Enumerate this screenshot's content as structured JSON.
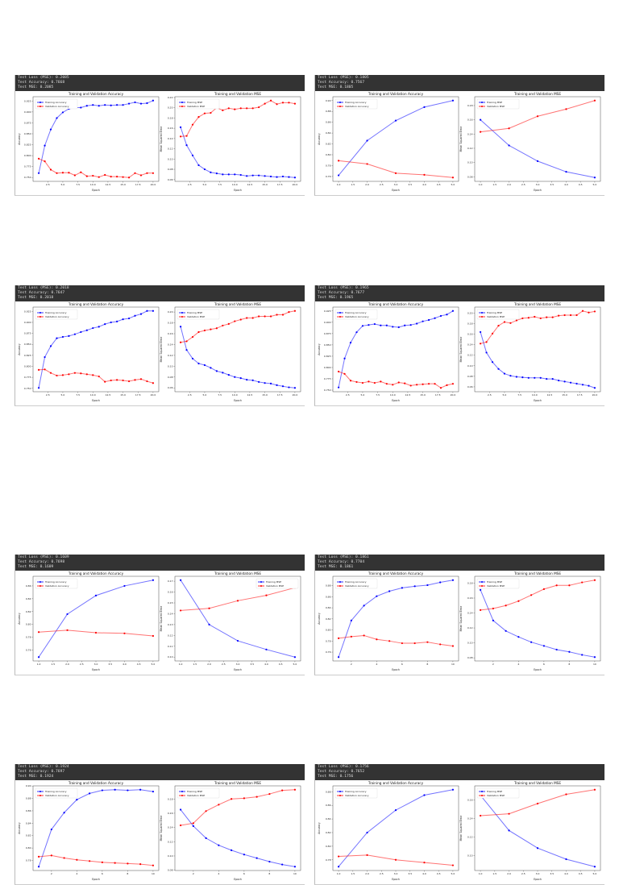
{
  "panels": [
    {
      "header": [
        "Test Loss (MSE): 0.2085",
        "Test Accuracy: 0.7668",
        "Test MSE: 0.2085"
      ]
    },
    {
      "header": [
        "Test Loss (MSE): 0.1805",
        "Test Accuracy: 0.7567",
        "Test MSE: 0.1805"
      ]
    },
    {
      "header": [
        "Test Loss (MSE): 0.2018",
        "Test Accuracy: 0.7647",
        "Test MSE: 0.2018"
      ]
    },
    {
      "header": [
        "Test Loss (MSE): 0.1965",
        "Test Accuracy: 0.7677",
        "Test MSE: 0.1965"
      ]
    },
    {
      "header": [
        "Test Loss (MSE): 0.1609",
        "Test Accuracy: 0.7698",
        "Test MSE: 0.1609"
      ]
    },
    {
      "header": [
        "Test Loss (MSE): 0.1861",
        "Test Accuracy: 0.7704",
        "Test MSE: 0.1861"
      ]
    },
    {
      "header": [
        "Test Loss (MSE): 0.1924",
        "Test Accuracy: 0.7697",
        "Test MSE: 0.1924"
      ]
    },
    {
      "header": [
        "Test Loss (MSE): 0.1756",
        "Test Accuracy: 0.7652",
        "Test MSE: 0.1756"
      ]
    }
  ],
  "colors": {
    "training": "#0000ff",
    "validation": "#ff0000",
    "header_bg": "#333333"
  },
  "chart_data": [
    {
      "type": "line",
      "title": "Training and Validation Accuracy",
      "xlabel": "Epoch",
      "ylabel": "Accuracy",
      "legend": "upper-left",
      "xticks": [
        "2.5",
        "5.0",
        "7.5",
        "10.0",
        "12.5",
        "15.0",
        "17.5",
        "20.0"
      ],
      "yticks": [
        "0.750",
        "0.775",
        "0.800",
        "0.825",
        "0.850",
        "0.875",
        "0.900",
        "0.925"
      ],
      "series": [
        {
          "name": "Training Accuracy",
          "values": [
            0.76,
            0.823,
            0.86,
            0.886,
            0.899,
            0.907,
            0.91,
            0.91,
            0.914,
            0.916,
            0.914,
            0.916,
            0.915,
            0.916,
            0.916,
            0.919,
            0.922,
            0.919,
            0.92,
            0.926
          ]
        },
        {
          "name": "Validation Accuracy",
          "values": [
            0.793,
            0.787,
            0.768,
            0.76,
            0.761,
            0.761,
            0.755,
            0.762,
            0.753,
            0.754,
            0.751,
            0.756,
            0.752,
            0.752,
            0.751,
            0.75,
            0.76,
            0.755,
            0.76,
            0.76
          ]
        }
      ]
    },
    {
      "type": "line",
      "title": "Training and Validation MSE",
      "xlabel": "Epoch",
      "ylabel": "Mean Squared Error",
      "legend": "upper-left",
      "xticks": [
        "2.5",
        "5.0",
        "7.5",
        "10.0",
        "12.5",
        "15.0",
        "17.5",
        "20.0"
      ],
      "yticks": [
        "0.06",
        "0.08",
        "0.10",
        "0.12",
        "0.14",
        "0.16",
        "0.18",
        "0.20",
        "0.22"
      ],
      "series": [
        {
          "name": "Training MSE",
          "values": [
            0.162,
            0.127,
            0.107,
            0.088,
            0.08,
            0.074,
            0.072,
            0.07,
            0.07,
            0.07,
            0.069,
            0.067,
            0.068,
            0.068,
            0.067,
            0.066,
            0.065,
            0.066,
            0.065,
            0.064
          ]
        },
        {
          "name": "Validation MSE",
          "values": [
            0.144,
            0.145,
            0.167,
            0.182,
            0.189,
            0.19,
            0.2,
            0.195,
            0.199,
            0.197,
            0.199,
            0.199,
            0.199,
            0.201,
            0.208,
            0.214,
            0.207,
            0.21,
            0.21,
            0.208
          ]
        }
      ]
    },
    {
      "type": "line",
      "title": "Training and Validation Accuracy",
      "xlabel": "Epoch",
      "ylabel": "Accuracy",
      "legend": "upper-left",
      "xticks": [
        "1.0",
        "1.5",
        "2.0",
        "2.5",
        "3.0",
        "3.5",
        "4.0",
        "4.5",
        "5.0"
      ],
      "yticks": [
        "0.76",
        "0.78",
        "0.80",
        "0.82",
        "0.84",
        "0.86",
        "0.88",
        "0.90"
      ],
      "series": [
        {
          "name": "Training Accuracy",
          "values": [
            0.762,
            0.826,
            0.863,
            0.888,
            0.9
          ]
        },
        {
          "name": "Validation Accuracy",
          "values": [
            0.789,
            0.783,
            0.766,
            0.763,
            0.758
          ]
        }
      ]
    },
    {
      "type": "line",
      "title": "Training and Validation MSE",
      "xlabel": "Epoch",
      "ylabel": "Mean Squared Error",
      "legend": "upper-left",
      "xticks": [
        "1.0",
        "1.5",
        "2.0",
        "2.5",
        "3.0",
        "3.5",
        "4.0",
        "4.5",
        "5.0"
      ],
      "yticks": [
        "0.08",
        "0.10",
        "0.12",
        "0.14",
        "0.16",
        "0.18"
      ],
      "series": [
        {
          "name": "Training MSE",
          "values": [
            0.16,
            0.124,
            0.102,
            0.087,
            0.079
          ]
        },
        {
          "name": "Validation MSE",
          "values": [
            0.143,
            0.148,
            0.165,
            0.175,
            0.187
          ]
        }
      ]
    },
    {
      "type": "line",
      "title": "Training and Validation Accuracy",
      "xlabel": "Epoch",
      "ylabel": "Accuracy",
      "legend": "upper-left",
      "xticks": [
        "2.5",
        "5.0",
        "7.5",
        "10.0",
        "12.5",
        "15.0",
        "17.5",
        "20.0"
      ],
      "yticks": [
        "0.750",
        "0.775",
        "0.800",
        "0.825",
        "0.850",
        "0.875",
        "0.900",
        "0.925"
      ],
      "series": [
        {
          "name": "Training Accuracy",
          "values": [
            0.751,
            0.821,
            0.846,
            0.864,
            0.867,
            0.869,
            0.873,
            0.878,
            0.882,
            0.887,
            0.89,
            0.896,
            0.9,
            0.902,
            0.907,
            0.909,
            0.915,
            0.919,
            0.926,
            0.926
          ]
        },
        {
          "name": "Validation Accuracy",
          "values": [
            0.792,
            0.793,
            0.785,
            0.779,
            0.78,
            0.782,
            0.785,
            0.784,
            0.782,
            0.78,
            0.777,
            0.765,
            0.768,
            0.769,
            0.768,
            0.766,
            0.769,
            0.771,
            0.766,
            0.762
          ]
        }
      ]
    },
    {
      "type": "line",
      "title": "Training and Validation MSE",
      "xlabel": "Epoch",
      "ylabel": "Mean Squared Error",
      "legend": "upper-left",
      "xticks": [
        "2.5",
        "5.0",
        "7.5",
        "10.0",
        "12.5",
        "15.0",
        "17.5",
        "20.0"
      ],
      "yticks": [
        "0.06",
        "0.08",
        "0.10",
        "0.12",
        "0.14",
        "0.16",
        "0.18",
        "0.20"
      ],
      "series": [
        {
          "name": "Training MSE",
          "values": [
            0.173,
            0.13,
            0.114,
            0.105,
            0.102,
            0.097,
            0.091,
            0.088,
            0.084,
            0.08,
            0.078,
            0.075,
            0.074,
            0.071,
            0.069,
            0.068,
            0.065,
            0.063,
            0.061,
            0.06
          ]
        },
        {
          "name": "Validation MSE",
          "values": [
            0.144,
            0.146,
            0.154,
            0.163,
            0.166,
            0.168,
            0.17,
            0.175,
            0.178,
            0.183,
            0.186,
            0.189,
            0.189,
            0.192,
            0.192,
            0.192,
            0.195,
            0.195,
            0.2,
            0.202
          ]
        }
      ]
    },
    {
      "type": "line",
      "title": "Training and Validation Accuracy",
      "xlabel": "Epoch",
      "ylabel": "Accuracy",
      "legend": "upper-left",
      "xticks": [
        "2.5",
        "5.0",
        "7.5",
        "10.0",
        "12.5",
        "15.0",
        "17.5",
        "20.0"
      ],
      "yticks": [
        "0.750",
        "0.775",
        "0.800",
        "0.825",
        "0.850",
        "0.875",
        "0.900",
        "0.925"
      ],
      "series": [
        {
          "name": "Training Accuracy",
          "values": [
            0.756,
            0.82,
            0.855,
            0.878,
            0.892,
            0.894,
            0.896,
            0.893,
            0.893,
            0.89,
            0.889,
            0.893,
            0.894,
            0.897,
            0.902,
            0.905,
            0.909,
            0.914,
            0.917,
            0.925
          ]
        },
        {
          "name": "Validation Accuracy",
          "values": [
            0.791,
            0.786,
            0.771,
            0.768,
            0.766,
            0.769,
            0.766,
            0.769,
            0.764,
            0.762,
            0.767,
            0.765,
            0.76,
            0.762,
            0.763,
            0.764,
            0.764,
            0.755,
            0.761,
            0.764
          ]
        }
      ]
    },
    {
      "type": "line",
      "title": "Training and Validation MSE",
      "xlabel": "Epoch",
      "ylabel": "Mean Squared Error",
      "legend": "upper-left",
      "xticks": [
        "2.5",
        "5.0",
        "7.5",
        "10.0",
        "12.5",
        "15.0",
        "17.5",
        "20.0"
      ],
      "yticks": [
        "0.06",
        "0.08",
        "0.10",
        "0.12",
        "0.14",
        "0.16",
        "0.18",
        "0.20"
      ],
      "series": [
        {
          "name": "Training MSE",
          "values": [
            0.164,
            0.125,
            0.107,
            0.094,
            0.085,
            0.081,
            0.079,
            0.078,
            0.077,
            0.077,
            0.077,
            0.075,
            0.075,
            0.072,
            0.07,
            0.068,
            0.066,
            0.064,
            0.062,
            0.058
          ]
        },
        {
          "name": "Validation MSE",
          "values": [
            0.142,
            0.145,
            0.161,
            0.176,
            0.183,
            0.181,
            0.186,
            0.19,
            0.191,
            0.193,
            0.19,
            0.192,
            0.192,
            0.195,
            0.196,
            0.196,
            0.196,
            0.204,
            0.201,
            0.203
          ]
        }
      ]
    },
    {
      "type": "line",
      "title": "Training and Validation Accuracy",
      "xlabel": "Epoch",
      "ylabel": "Accuracy",
      "legend": "upper-left",
      "xticks": [
        "1.0",
        "1.5",
        "2.0",
        "2.5",
        "3.0",
        "3.5",
        "4.0",
        "4.5",
        "5.0"
      ],
      "yticks": [
        "0.76",
        "0.78",
        "0.80",
        "0.82",
        "0.84",
        "0.86"
      ],
      "series": [
        {
          "name": "Training Accuracy",
          "values": [
            0.749,
            0.816,
            0.845,
            0.86,
            0.869
          ]
        },
        {
          "name": "Validation Accuracy",
          "values": [
            0.788,
            0.791,
            0.787,
            0.786,
            0.782
          ]
        }
      ]
    },
    {
      "type": "line",
      "title": "Training and Validation MSE",
      "xlabel": "Epoch",
      "ylabel": "Mean Squared Error",
      "legend": "upper-right",
      "xticks": [
        "1.0",
        "1.5",
        "2.0",
        "2.5",
        "3.0",
        "3.5",
        "4.0",
        "4.5",
        "5.0"
      ],
      "yticks": [
        "0.10",
        "0.11",
        "0.12",
        "0.13",
        "0.14",
        "0.15",
        "0.16",
        "0.17"
      ],
      "series": [
        {
          "name": "Training MSE",
          "values": [
            0.171,
            0.13,
            0.115,
            0.107,
            0.1
          ]
        },
        {
          "name": "Validation MSE",
          "values": [
            0.143,
            0.145,
            0.152,
            0.157,
            0.164
          ]
        }
      ]
    },
    {
      "type": "line",
      "title": "Training and Validation Accuracy",
      "xlabel": "Epoch",
      "ylabel": "Accuracy",
      "legend": "upper-left",
      "xticks": [
        "2",
        "4",
        "6",
        "8",
        "10"
      ],
      "yticks": [
        "0.76",
        "0.78",
        "0.80",
        "0.82",
        "0.84",
        "0.86",
        "0.88"
      ],
      "series": [
        {
          "name": "Training Accuracy",
          "values": [
            0.751,
            0.817,
            0.844,
            0.861,
            0.87,
            0.876,
            0.879,
            0.881,
            0.886,
            0.89
          ]
        },
        {
          "name": "Validation Accuracy",
          "values": [
            0.785,
            0.788,
            0.79,
            0.783,
            0.78,
            0.776,
            0.776,
            0.778,
            0.774,
            0.771
          ]
        }
      ]
    },
    {
      "type": "line",
      "title": "Training and Validation MSE",
      "xlabel": "Epoch",
      "ylabel": "Mean Squared Error",
      "legend": "upper-left",
      "xticks": [
        "2",
        "4",
        "6",
        "8",
        "10"
      ],
      "yticks": [
        "0.08",
        "0.10",
        "0.12",
        "0.14",
        "0.16",
        "0.18"
      ],
      "series": [
        {
          "name": "Training MSE",
          "values": [
            0.171,
            0.13,
            0.116,
            0.108,
            0.101,
            0.096,
            0.091,
            0.088,
            0.084,
            0.081
          ]
        },
        {
          "name": "Validation MSE",
          "values": [
            0.144,
            0.146,
            0.15,
            0.156,
            0.164,
            0.172,
            0.177,
            0.177,
            0.181,
            0.184
          ]
        }
      ]
    },
    {
      "type": "line",
      "title": "Training and Validation Accuracy",
      "xlabel": "Epoch",
      "ylabel": "Accuracy",
      "legend": "upper-left",
      "xticks": [
        "2",
        "4",
        "6",
        "8",
        "10"
      ],
      "yticks": [
        "0.76",
        "0.78",
        "0.80",
        "0.82",
        "0.84",
        "0.86",
        "0.88",
        "0.90"
      ],
      "series": [
        {
          "name": "Training Accuracy",
          "values": [
            0.77,
            0.83,
            0.857,
            0.878,
            0.888,
            0.893,
            0.894,
            0.893,
            0.894,
            0.891
          ]
        },
        {
          "name": "Validation Accuracy",
          "values": [
            0.786,
            0.788,
            0.784,
            0.781,
            0.779,
            0.777,
            0.776,
            0.775,
            0.774,
            0.772
          ]
        }
      ]
    },
    {
      "type": "line",
      "title": "Training and Validation MSE",
      "xlabel": "Epoch",
      "ylabel": "Mean Squared Error",
      "legend": "upper-left",
      "xticks": [
        "2",
        "4",
        "6",
        "8",
        "10"
      ],
      "yticks": [
        "0.08",
        "0.10",
        "0.12",
        "0.14",
        "0.16",
        "0.18"
      ],
      "series": [
        {
          "name": "Training MSE",
          "values": [
            0.165,
            0.142,
            0.125,
            0.115,
            0.108,
            0.102,
            0.097,
            0.092,
            0.088,
            0.085
          ]
        },
        {
          "name": "Validation MSE",
          "values": [
            0.143,
            0.146,
            0.163,
            0.172,
            0.18,
            0.181,
            0.183,
            0.187,
            0.192,
            0.193
          ]
        }
      ]
    },
    {
      "type": "line",
      "title": "Training and Validation Accuracy",
      "xlabel": "Epoch",
      "ylabel": "Accuracy",
      "legend": "upper-left",
      "xticks": [
        "1.0",
        "1.5",
        "2.0",
        "2.5",
        "3.0",
        "3.5",
        "4.0",
        "4.5",
        "5.0"
      ],
      "yticks": [
        "0.78",
        "0.80",
        "0.82",
        "0.84",
        "0.86",
        "0.88"
      ],
      "series": [
        {
          "name": "Training Accuracy",
          "values": [
            0.77,
            0.82,
            0.853,
            0.875,
            0.883
          ]
        },
        {
          "name": "Validation Accuracy",
          "values": [
            0.785,
            0.787,
            0.78,
            0.776,
            0.772
          ]
        }
      ]
    },
    {
      "type": "line",
      "title": "Training and Validation MSE",
      "xlabel": "Epoch",
      "ylabel": "Mean Squared Error",
      "legend": "upper-left",
      "xticks": [
        "1.0",
        "1.5",
        "2.0",
        "2.5",
        "3.0",
        "3.5",
        "4.0",
        "4.5",
        "5.0"
      ],
      "yticks": [
        "0.08",
        "0.10",
        "0.12",
        "0.14",
        "0.16"
      ],
      "series": [
        {
          "name": "Training MSE",
          "values": [
            0.165,
            0.127,
            0.108,
            0.096,
            0.088
          ]
        },
        {
          "name": "Validation MSE",
          "values": [
            0.143,
            0.145,
            0.156,
            0.166,
            0.171
          ]
        }
      ]
    }
  ]
}
